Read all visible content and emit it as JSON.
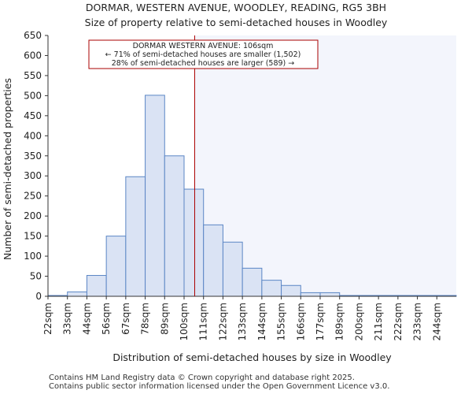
{
  "chart_data": {
    "type": "bar",
    "title": "DORMAR, WESTERN AVENUE, WOODLEY, READING, RG5 3BH",
    "subtitle": "Size of property relative to semi-detached houses in Woodley",
    "xlabel": "Distribution of semi-detached houses by size in Woodley",
    "ylabel": "Number of semi-detached properties",
    "categories": [
      "22sqm",
      "33sqm",
      "44sqm",
      "56sqm",
      "67sqm",
      "78sqm",
      "89sqm",
      "100sqm",
      "111sqm",
      "122sqm",
      "133sqm",
      "144sqm",
      "155sqm",
      "166sqm",
      "177sqm",
      "189sqm",
      "200sqm",
      "211sqm",
      "222sqm",
      "233sqm",
      "244sqm"
    ],
    "values": [
      2,
      11,
      52,
      150,
      298,
      501,
      350,
      267,
      178,
      135,
      70,
      40,
      27,
      9,
      9,
      2,
      2,
      2,
      2,
      2,
      2
    ],
    "ylim": [
      0,
      650
    ],
    "yticks": [
      0,
      50,
      100,
      150,
      200,
      250,
      300,
      350,
      400,
      450,
      500,
      550,
      600,
      650
    ],
    "property_size": 106,
    "property_bin_index": 7,
    "property_bin_start": 100,
    "property_bin_width": 11,
    "annotation": {
      "line1": "DORMAR WESTERN AVENUE: 106sqm",
      "line2": "← 71% of semi-detached houses are smaller (1,502)",
      "line3": "28% of semi-detached houses are larger (589) →"
    },
    "colors": {
      "bar_fill": "#dae3f4",
      "bar_stroke": "#5b86c5",
      "highlight_region": "#f3f5fc",
      "marker_line": "#aa0000",
      "annotation_border": "#aa0000"
    }
  },
  "footer": {
    "line1": "Contains HM Land Registry data © Crown copyright and database right 2025.",
    "line2": "Contains public sector information licensed under the Open Government Licence v3.0."
  }
}
